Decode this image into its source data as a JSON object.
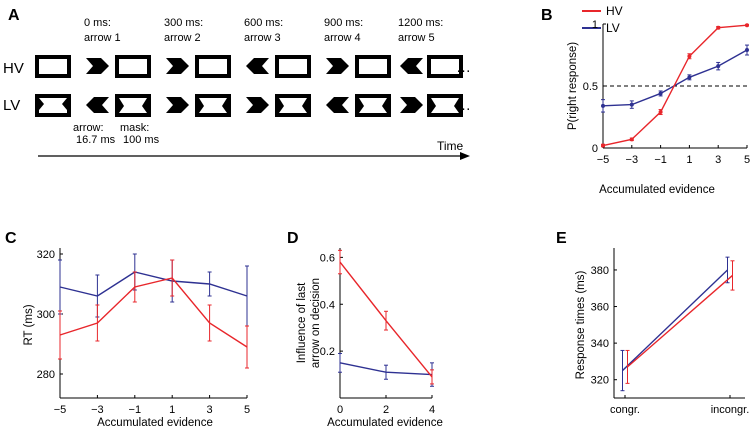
{
  "colors": {
    "hv": "#e8262b",
    "lv": "#2e3192",
    "axis": "#000000",
    "dash": "#000000"
  },
  "panel_a": {
    "letter": "A",
    "row_labels": [
      "HV",
      "LV"
    ],
    "events": [
      {
        "time": "0 ms:",
        "arrow": "arrow 1",
        "hv_dir": "right",
        "lv_dir": "left"
      },
      {
        "time": "300 ms:",
        "arrow": "arrow 2",
        "hv_dir": "right",
        "lv_dir": "right"
      },
      {
        "time": "600 ms:",
        "arrow": "arrow 3",
        "hv_dir": "left",
        "lv_dir": "right"
      },
      {
        "time": "900 ms:",
        "arrow": "arrow 4",
        "hv_dir": "right",
        "lv_dir": "left"
      },
      {
        "time": "1200 ms:",
        "arrow": "arrow 5",
        "hv_dir": "left",
        "lv_dir": "right"
      }
    ],
    "arrow_note": [
      "arrow:",
      "16.7 ms"
    ],
    "mask_note": [
      "mask:",
      "100 ms"
    ],
    "ellipsis": "…",
    "time_label": "Time"
  },
  "chart_data": [
    {
      "id": "B",
      "letter": "B",
      "type": "line",
      "xlabel": "Accumulated evidence",
      "ylabel": "P(right response)",
      "xlim": [
        -5,
        5
      ],
      "ylim": [
        0,
        1
      ],
      "xticks": [
        -5,
        -3,
        -1,
        1,
        3,
        5
      ],
      "xtick_labels": [
        "−5",
        "−3",
        "−1",
        "1",
        "3",
        "5"
      ],
      "yticks": [
        0,
        0.5,
        1
      ],
      "ytick_labels": [
        "0",
        "0.5",
        "1"
      ],
      "legend": {
        "position": "top-left",
        "entries": [
          "HV",
          "LV"
        ]
      },
      "reference_line": 0.5,
      "x": [
        -5,
        -3,
        -1,
        1,
        3,
        5
      ],
      "series": [
        {
          "name": "HV",
          "values": [
            0.02,
            0.07,
            0.29,
            0.74,
            0.97,
            0.99
          ],
          "err": [
            0.01,
            0.01,
            0.02,
            0.02,
            0.01,
            0.005
          ]
        },
        {
          "name": "LV",
          "values": [
            0.34,
            0.35,
            0.44,
            0.57,
            0.66,
            0.79
          ],
          "err": [
            0.05,
            0.03,
            0.02,
            0.02,
            0.03,
            0.04
          ]
        }
      ]
    },
    {
      "id": "C",
      "letter": "C",
      "type": "line",
      "xlabel": "Accumulated evidence",
      "ylabel": "RT (ms)",
      "xlim": [
        -5,
        5
      ],
      "ylim": [
        272,
        322
      ],
      "xticks": [
        -5,
        -3,
        -1,
        1,
        3,
        5
      ],
      "xtick_labels": [
        "−5",
        "−3",
        "−1",
        "1",
        "3",
        "5"
      ],
      "yticks": [
        280,
        300,
        320
      ],
      "ytick_labels": [
        "280",
        "300",
        "320"
      ],
      "x": [
        -5,
        -3,
        -1,
        1,
        3,
        5
      ],
      "series": [
        {
          "name": "HV",
          "values": [
            293,
            297,
            309,
            312,
            297,
            289
          ],
          "err": [
            8,
            6,
            5,
            6,
            6,
            7
          ]
        },
        {
          "name": "LV",
          "values": [
            309,
            306,
            314,
            311,
            310,
            306
          ],
          "err": [
            9,
            7,
            6,
            7,
            4,
            10
          ]
        }
      ]
    },
    {
      "id": "D",
      "letter": "D",
      "type": "line",
      "xlabel": "Accumulated evidence",
      "ylabel": "Influence of last arrow on decision",
      "ylabel_lines": [
        "Influence of last",
        "arrow on decision"
      ],
      "xlim": [
        0,
        4
      ],
      "ylim": [
        0,
        0.64
      ],
      "xticks": [
        0,
        2,
        4
      ],
      "xtick_labels": [
        "0",
        "2",
        "4"
      ],
      "yticks": [
        0.2,
        0.4,
        0.6
      ],
      "ytick_labels": [
        "0.2",
        "0.4",
        "0.6"
      ],
      "x": [
        0,
        2,
        4
      ],
      "series": [
        {
          "name": "HV",
          "values": [
            0.58,
            0.33,
            0.09
          ],
          "err": [
            0.05,
            0.04,
            0.03
          ]
        },
        {
          "name": "LV",
          "values": [
            0.15,
            0.11,
            0.1
          ],
          "err": [
            0.04,
            0.03,
            0.05
          ]
        }
      ]
    },
    {
      "id": "E",
      "letter": "E",
      "type": "line",
      "xlabel": "",
      "ylabel": "Response times (ms)",
      "categories": [
        "congr.",
        "incongr."
      ],
      "xlim": [
        0,
        1
      ],
      "ylim": [
        310,
        392
      ],
      "yticks": [
        320,
        340,
        360,
        380
      ],
      "ytick_labels": [
        "320",
        "340",
        "360",
        "380"
      ],
      "series": [
        {
          "name": "HV",
          "values": [
            327,
            377
          ],
          "err": [
            9,
            8
          ]
        },
        {
          "name": "LV",
          "values": [
            325,
            380
          ],
          "err": [
            11,
            7
          ]
        }
      ]
    }
  ]
}
